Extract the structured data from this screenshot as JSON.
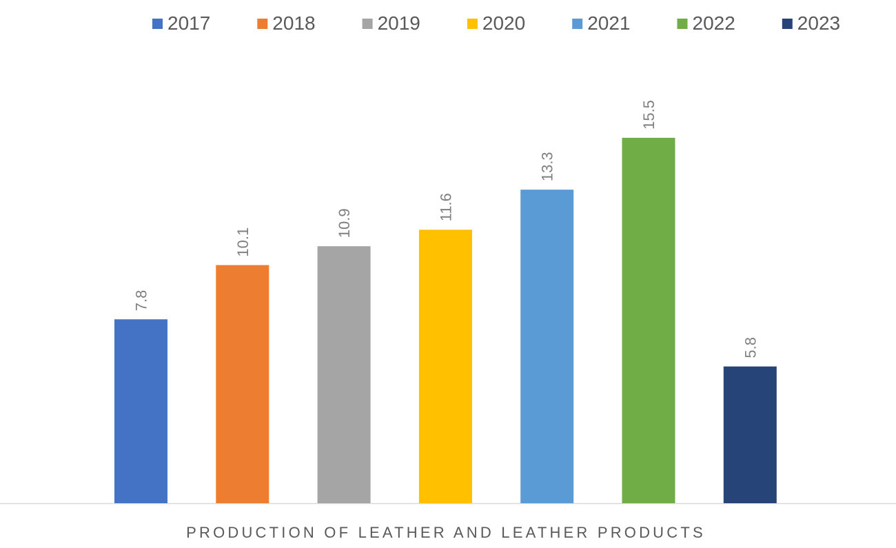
{
  "chart_data": {
    "type": "bar",
    "categories": [
      "Production of Leather and Leather Products"
    ],
    "category_label": "PRODUCTION OF LEATHER AND LEATHER PRODUCTS",
    "series": [
      {
        "name": "2017",
        "values": [
          7.8
        ],
        "color": "#4472C4"
      },
      {
        "name": "2018",
        "values": [
          10.1
        ],
        "color": "#ED7D31"
      },
      {
        "name": "2019",
        "values": [
          10.9
        ],
        "color": "#A5A5A5"
      },
      {
        "name": "2020",
        "values": [
          11.6
        ],
        "color": "#FFC000"
      },
      {
        "name": "2021",
        "values": [
          13.3
        ],
        "color": "#5B9BD5"
      },
      {
        "name": "2022",
        "values": [
          15.5
        ],
        "color": "#70AD47"
      },
      {
        "name": "2023",
        "values": [
          5.8
        ],
        "color": "#264478"
      }
    ],
    "ylim": [
      0,
      21
    ],
    "grid": false,
    "legend": "top",
    "data_labels": true
  }
}
